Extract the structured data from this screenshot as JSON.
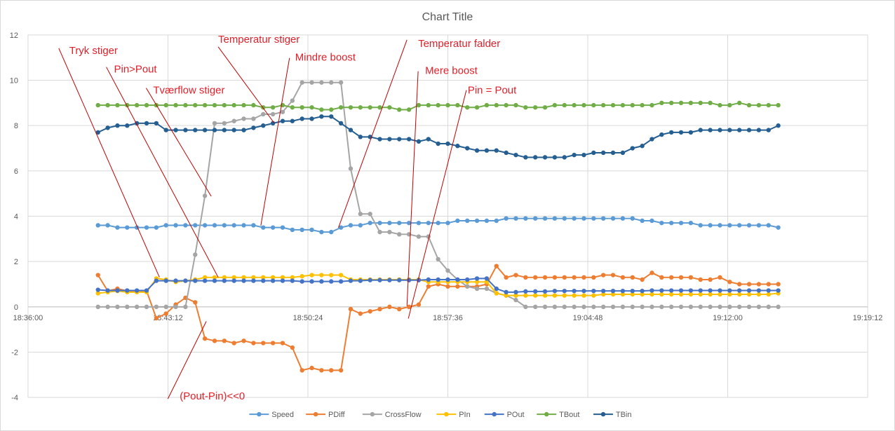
{
  "chart_data": {
    "type": "line",
    "title": "Chart Title",
    "xlabel": "",
    "ylabel": "",
    "ylim": [
      -4,
      12
    ],
    "yticks": [
      -4,
      -2,
      0,
      2,
      4,
      6,
      8,
      10,
      12
    ],
    "x_tick_labels": [
      "18:36:00",
      "18:43:12",
      "18:50:24",
      "18:57:36",
      "19:04:48",
      "19:12:00",
      "19:19:12"
    ],
    "x_tick_seconds": [
      0,
      432,
      864,
      1296,
      1728,
      2160,
      2592
    ],
    "x_start_seconds": 216,
    "x_step_seconds": 30,
    "grid": true,
    "legend_position": "bottom",
    "series": [
      {
        "name": "Speed",
        "color": "#5b9bd5",
        "values": [
          3.6,
          3.6,
          3.5,
          3.5,
          3.5,
          3.5,
          3.5,
          3.6,
          3.6,
          3.6,
          3.6,
          3.6,
          3.6,
          3.6,
          3.6,
          3.6,
          3.6,
          3.5,
          3.5,
          3.5,
          3.4,
          3.4,
          3.4,
          3.3,
          3.3,
          3.5,
          3.6,
          3.6,
          3.7,
          3.7,
          3.7,
          3.7,
          3.7,
          3.7,
          3.7,
          3.7,
          3.7,
          3.8,
          3.8,
          3.8,
          3.8,
          3.8,
          3.9,
          3.9,
          3.9,
          3.9,
          3.9,
          3.9,
          3.9,
          3.9,
          3.9,
          3.9,
          3.9,
          3.9,
          3.9,
          3.9,
          3.8,
          3.8,
          3.7,
          3.7,
          3.7,
          3.7,
          3.6,
          3.6,
          3.6,
          3.6,
          3.6,
          3.6,
          3.6,
          3.6,
          3.5
        ]
      },
      {
        "name": "PDiff",
        "color": "#ed7d31",
        "values": [
          1.4,
          0.7,
          0.8,
          0.7,
          0.7,
          0.7,
          -0.5,
          -0.3,
          0.1,
          0.4,
          0.2,
          -1.4,
          -1.5,
          -1.5,
          -1.6,
          -1.5,
          -1.6,
          -1.6,
          -1.6,
          -1.6,
          -1.8,
          -2.8,
          -2.7,
          -2.8,
          -2.8,
          -2.8,
          -0.1,
          -0.3,
          -0.2,
          -0.1,
          0.0,
          -0.1,
          0.0,
          0.1,
          0.9,
          1.0,
          0.9,
          0.9,
          0.9,
          0.9,
          1.0,
          1.8,
          1.3,
          1.4,
          1.3,
          1.3,
          1.3,
          1.3,
          1.3,
          1.3,
          1.3,
          1.3,
          1.4,
          1.4,
          1.3,
          1.3,
          1.2,
          1.5,
          1.3,
          1.3,
          1.3,
          1.3,
          1.2,
          1.2,
          1.3,
          1.1,
          1.0,
          1.0,
          1.0,
          1.0,
          1.0
        ]
      },
      {
        "name": "CrossFlow",
        "color": "#a5a5a5",
        "values": [
          0,
          0,
          0,
          0,
          0,
          0,
          0,
          0,
          0,
          0,
          2.3,
          4.9,
          8.1,
          8.1,
          8.2,
          8.3,
          8.3,
          8.5,
          8.5,
          8.6,
          9.1,
          9.9,
          9.9,
          9.9,
          9.9,
          9.9,
          6.1,
          4.1,
          4.1,
          3.3,
          3.3,
          3.2,
          3.2,
          3.1,
          3.1,
          2.1,
          1.6,
          1.2,
          0.9,
          0.8,
          0.8,
          0.6,
          0.5,
          0.3,
          0,
          0,
          0,
          0,
          0,
          0,
          0,
          0,
          0,
          0,
          0,
          0,
          0,
          0,
          0,
          0,
          0,
          0,
          0,
          0,
          0,
          0,
          0,
          0,
          0,
          0,
          0
        ]
      },
      {
        "name": "PIn",
        "color": "#ffc000",
        "values": [
          0.6,
          0.65,
          0.7,
          0.65,
          0.65,
          0.65,
          1.25,
          1.2,
          1.1,
          1.15,
          1.2,
          1.3,
          1.3,
          1.3,
          1.3,
          1.3,
          1.3,
          1.3,
          1.3,
          1.3,
          1.3,
          1.35,
          1.4,
          1.4,
          1.4,
          1.4,
          1.2,
          1.2,
          1.2,
          1.2,
          1.2,
          1.2,
          1.2,
          1.2,
          1.1,
          1.1,
          1.1,
          1.1,
          1.1,
          1.1,
          1.1,
          0.6,
          0.5,
          0.5,
          0.5,
          0.5,
          0.5,
          0.5,
          0.5,
          0.5,
          0.5,
          0.5,
          0.55,
          0.55,
          0.55,
          0.55,
          0.55,
          0.55,
          0.55,
          0.55,
          0.55,
          0.55,
          0.55,
          0.55,
          0.55,
          0.55,
          0.55,
          0.55,
          0.55,
          0.55,
          0.6
        ]
      },
      {
        "name": "POut",
        "color": "#4472c4",
        "values": [
          0.75,
          0.72,
          0.72,
          0.72,
          0.72,
          0.72,
          1.15,
          1.15,
          1.15,
          1.15,
          1.15,
          1.15,
          1.15,
          1.15,
          1.15,
          1.15,
          1.15,
          1.15,
          1.15,
          1.15,
          1.15,
          1.12,
          1.12,
          1.12,
          1.12,
          1.12,
          1.15,
          1.15,
          1.18,
          1.18,
          1.18,
          1.18,
          1.18,
          1.18,
          1.2,
          1.2,
          1.2,
          1.2,
          1.2,
          1.25,
          1.25,
          0.8,
          0.65,
          0.65,
          0.68,
          0.68,
          0.68,
          0.7,
          0.7,
          0.7,
          0.7,
          0.7,
          0.7,
          0.7,
          0.7,
          0.7,
          0.7,
          0.72,
          0.72,
          0.72,
          0.72,
          0.72,
          0.72,
          0.72,
          0.72,
          0.72,
          0.72,
          0.72,
          0.72,
          0.72,
          0.72
        ]
      },
      {
        "name": "TBout",
        "color": "#70ad47",
        "values": [
          8.9,
          8.9,
          8.9,
          8.9,
          8.9,
          8.9,
          8.9,
          8.9,
          8.9,
          8.9,
          8.9,
          8.9,
          8.9,
          8.9,
          8.9,
          8.9,
          8.9,
          8.8,
          8.8,
          8.9,
          8.8,
          8.8,
          8.8,
          8.7,
          8.7,
          8.8,
          8.8,
          8.8,
          8.8,
          8.8,
          8.8,
          8.7,
          8.7,
          8.9,
          8.9,
          8.9,
          8.9,
          8.9,
          8.8,
          8.8,
          8.9,
          8.9,
          8.9,
          8.9,
          8.8,
          8.8,
          8.8,
          8.9,
          8.9,
          8.9,
          8.9,
          8.9,
          8.9,
          8.9,
          8.9,
          8.9,
          8.9,
          8.9,
          9.0,
          9.0,
          9.0,
          9.0,
          9.0,
          9.0,
          8.9,
          8.9,
          9.0,
          8.9,
          8.9,
          8.9,
          8.9
        ]
      },
      {
        "name": "TBin",
        "color": "#255e91",
        "values": [
          7.7,
          7.9,
          8.0,
          8.0,
          8.1,
          8.1,
          8.1,
          7.8,
          7.8,
          7.8,
          7.8,
          7.8,
          7.8,
          7.8,
          7.8,
          7.8,
          7.9,
          8.0,
          8.1,
          8.2,
          8.2,
          8.3,
          8.3,
          8.4,
          8.4,
          8.1,
          7.8,
          7.5,
          7.5,
          7.4,
          7.4,
          7.4,
          7.4,
          7.3,
          7.4,
          7.2,
          7.2,
          7.1,
          7.0,
          6.9,
          6.9,
          6.9,
          6.8,
          6.7,
          6.6,
          6.6,
          6.6,
          6.6,
          6.6,
          6.7,
          6.7,
          6.8,
          6.8,
          6.8,
          6.8,
          7.0,
          7.1,
          7.4,
          7.6,
          7.7,
          7.7,
          7.7,
          7.8,
          7.8,
          7.8,
          7.8,
          7.8,
          7.8,
          7.8,
          7.8,
          8.0
        ]
      }
    ],
    "annotations": [
      {
        "text": "Tryk stiger"
      },
      {
        "text": "Pin>Pout"
      },
      {
        "text": "Tværflow stiger"
      },
      {
        "text": "Temperatur stiger"
      },
      {
        "text": "Mindre boost"
      },
      {
        "text": "Temperatur falder"
      },
      {
        "text": "Mere boost"
      },
      {
        "text": "Pin = Pout"
      },
      {
        "text": "(Pout-Pin)<<0"
      }
    ]
  }
}
